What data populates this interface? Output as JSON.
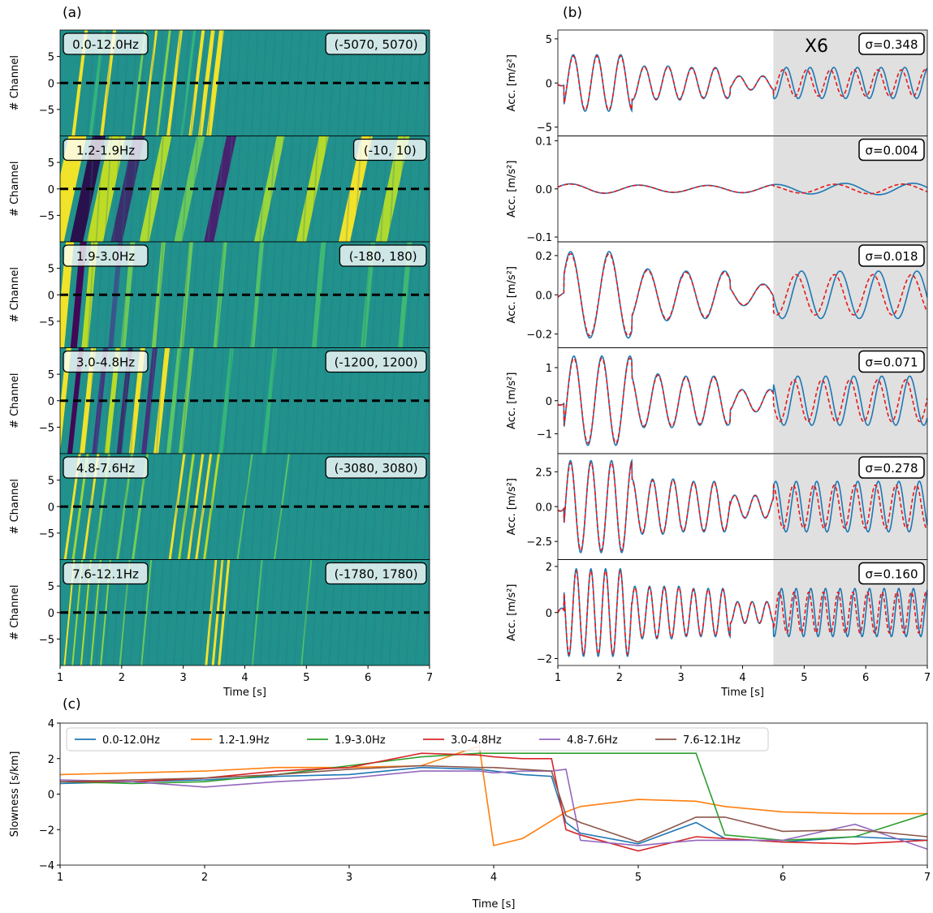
{
  "figure": {
    "panel_labels": [
      "(a)",
      "(b)",
      "(c)"
    ],
    "annotation_x6": "X6"
  },
  "chart_data": [
    {
      "panel": "(a)",
      "type": "heatmap",
      "xlabel": "Time [s]",
      "ylabel": "# Channel",
      "xlim": [
        1,
        7
      ],
      "xticks": [
        1,
        2,
        3,
        4,
        5,
        6,
        7
      ],
      "ylim": [
        -10,
        10
      ],
      "yticks": [
        5,
        0,
        -5
      ],
      "reference_line_channel": 0,
      "colormap": "viridis",
      "subplots": [
        {
          "band": "0.0-12.0Hz",
          "range": "(-5070, 5070)"
        },
        {
          "band": "1.2-1.9Hz",
          "range": "(-10, 10)"
        },
        {
          "band": "1.9-3.0Hz",
          "range": "(-180, 180)"
        },
        {
          "band": "3.0-4.8Hz",
          "range": "(-1200, 1200)"
        },
        {
          "band": "4.8-7.6Hz",
          "range": "(-3080, 3080)"
        },
        {
          "band": "7.6-12.1Hz",
          "range": "(-1780, 1780)"
        }
      ]
    },
    {
      "panel": "(b)",
      "type": "line",
      "xlabel": "Time [s]",
      "ylabel": "Acc. [m/s²]",
      "xlim": [
        1,
        7
      ],
      "xticks": [
        1,
        2,
        3,
        4,
        5,
        6,
        7
      ],
      "shaded_region": [
        4.5,
        7
      ],
      "series_styles": {
        "observed": "#1f77b4",
        "predicted_dashed": "#e41a1c"
      },
      "subplots": [
        {
          "sigma": "σ=0.348",
          "ylim": [
            -6,
            6
          ],
          "yticks": [
            5,
            0,
            -5
          ],
          "ytick_labels": [
            "5",
            "0",
            "−5"
          ],
          "amplitude": 3.2
        },
        {
          "sigma": "σ=0.004",
          "ylim": [
            -0.11,
            0.11
          ],
          "yticks": [
            0.1,
            0,
            -0.1
          ],
          "ytick_labels": [
            "0.1",
            "0.0",
            "−0.1"
          ],
          "amplitude": 0.012
        },
        {
          "sigma": "σ=0.018",
          "ylim": [
            -0.27,
            0.27
          ],
          "yticks": [
            0.2,
            0,
            -0.2
          ],
          "ytick_labels": [
            "0.2",
            "0.0",
            "−0.2"
          ],
          "amplitude": 0.22
        },
        {
          "sigma": "σ=0.071",
          "ylim": [
            -1.6,
            1.6
          ],
          "yticks": [
            1,
            0,
            -1
          ],
          "ytick_labels": [
            "1",
            "0",
            "−1"
          ],
          "amplitude": 1.35
        },
        {
          "sigma": "σ=0.278",
          "ylim": [
            -3.8,
            3.8
          ],
          "yticks": [
            2.5,
            0,
            -2.5
          ],
          "ytick_labels": [
            "2.5",
            "0.0",
            "−2.5"
          ],
          "amplitude": 3.3
        },
        {
          "sigma": "σ=0.160",
          "ylim": [
            -2.3,
            2.3
          ],
          "yticks": [
            2,
            0,
            -2
          ],
          "ytick_labels": [
            "2",
            "0",
            "−2"
          ],
          "amplitude": 1.9
        }
      ]
    },
    {
      "panel": "(c)",
      "type": "line",
      "xlabel": "Time [s]",
      "ylabel": "Slowness [s/km]",
      "xlim": [
        1,
        7
      ],
      "ylim": [
        -4,
        4
      ],
      "xticks": [
        1,
        2,
        3,
        4,
        5,
        6,
        7
      ],
      "yticks": [
        4,
        2,
        0,
        -2,
        -4
      ],
      "ytick_labels": [
        "4",
        "2",
        "0",
        "−2",
        "−4"
      ],
      "legend_placement": "top",
      "x": [
        1.0,
        1.5,
        2.0,
        2.5,
        3.0,
        3.5,
        3.9,
        4.0,
        4.2,
        4.4,
        4.5,
        4.6,
        5.0,
        5.4,
        5.6,
        6.0,
        6.5,
        7.0
      ],
      "series": [
        {
          "name": "0.0-12.0Hz",
          "color": "#1f77b4",
          "values": [
            0.6,
            0.7,
            0.8,
            1.0,
            1.1,
            1.5,
            1.4,
            1.3,
            1.1,
            1.0,
            -1.6,
            -2.2,
            -2.8,
            -1.6,
            -2.5,
            -2.7,
            -2.4,
            -2.6
          ]
        },
        {
          "name": "1.2-1.9Hz",
          "color": "#ff7f0e",
          "values": [
            1.1,
            1.2,
            1.3,
            1.5,
            1.5,
            1.6,
            2.7,
            -2.9,
            -2.5,
            -1.5,
            -1.0,
            -0.7,
            -0.3,
            -0.4,
            -0.7,
            -1.0,
            -1.1,
            -1.1
          ]
        },
        {
          "name": "1.9-3.0Hz",
          "color": "#2ca02c",
          "values": [
            0.7,
            0.6,
            0.7,
            1.1,
            1.6,
            2.1,
            2.3,
            2.3,
            2.3,
            2.3,
            2.3,
            2.3,
            2.3,
            2.3,
            -2.3,
            -2.6,
            -2.4,
            -1.1
          ]
        },
        {
          "name": "3.0-4.8Hz",
          "color": "#d62728",
          "values": [
            0.7,
            0.7,
            0.9,
            1.3,
            1.5,
            2.3,
            2.2,
            2.1,
            2.0,
            2.0,
            -2.0,
            -2.3,
            -3.2,
            -2.4,
            -2.5,
            -2.7,
            -2.8,
            -2.6
          ]
        },
        {
          "name": "4.8-7.6Hz",
          "color": "#9467bd",
          "values": [
            0.8,
            0.7,
            0.4,
            0.7,
            0.9,
            1.3,
            1.3,
            1.2,
            1.3,
            1.3,
            1.4,
            -2.6,
            -2.9,
            -2.6,
            -2.6,
            -2.6,
            -1.7,
            -3.1
          ]
        },
        {
          "name": "7.6-12.1Hz",
          "color": "#8c564b",
          "values": [
            0.7,
            0.8,
            0.9,
            1.1,
            1.4,
            1.6,
            1.5,
            1.5,
            1.4,
            1.3,
            -1.2,
            -1.6,
            -2.7,
            -1.3,
            -1.3,
            -2.1,
            -2.0,
            -2.4
          ]
        }
      ]
    }
  ]
}
